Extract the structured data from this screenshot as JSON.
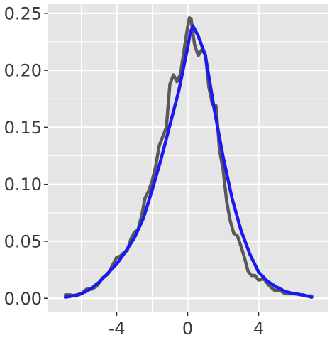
{
  "chart_data": {
    "type": "line",
    "title": "",
    "xlabel": "",
    "ylabel": "",
    "xlim": [
      -7.9,
      7.9
    ],
    "ylim": [
      -0.0123,
      0.258
    ],
    "x_ticks": [
      -4,
      0,
      4
    ],
    "x_tick_labels": [
      "-4",
      "0",
      "4"
    ],
    "y_ticks": [
      0.0,
      0.05,
      0.1,
      0.15,
      0.2,
      0.25
    ],
    "y_tick_labels": [
      "0.00",
      "0.05",
      "0.10",
      "0.15",
      "0.20",
      "0.25"
    ],
    "grid": true,
    "panel_background": "#e5e5e5",
    "grid_color": "#ffffff",
    "series": [
      {
        "color": "#595959",
        "x": [
          -6.9,
          -6.6,
          -6.3,
          -6.0,
          -5.7,
          -5.4,
          -5.1,
          -4.8,
          -4.5,
          -4.2,
          -4.0,
          -3.8,
          -3.6,
          -3.4,
          -3.2,
          -3.0,
          -2.8,
          -2.6,
          -2.4,
          -2.2,
          -2.0,
          -1.8,
          -1.6,
          -1.4,
          -1.2,
          -1.0,
          -0.8,
          -0.6,
          -0.4,
          -0.2,
          0.0,
          0.1,
          0.2,
          0.3,
          0.4,
          0.6,
          0.8,
          1.0,
          1.2,
          1.4,
          1.6,
          1.8,
          2.0,
          2.2,
          2.4,
          2.6,
          2.8,
          3.0,
          3.2,
          3.4,
          3.6,
          3.8,
          4.0,
          4.3,
          4.6,
          4.9,
          5.2,
          5.5,
          5.8,
          6.1,
          6.4,
          6.7,
          7.0
        ],
        "y": [
          0.003,
          0.003,
          0.002,
          0.004,
          0.008,
          0.008,
          0.011,
          0.018,
          0.021,
          0.03,
          0.036,
          0.037,
          0.04,
          0.042,
          0.052,
          0.058,
          0.06,
          0.072,
          0.088,
          0.094,
          0.103,
          0.116,
          0.134,
          0.142,
          0.15,
          0.188,
          0.196,
          0.19,
          0.197,
          0.218,
          0.238,
          0.246,
          0.245,
          0.232,
          0.222,
          0.213,
          0.218,
          0.214,
          0.185,
          0.17,
          0.169,
          0.13,
          0.113,
          0.085,
          0.068,
          0.057,
          0.055,
          0.046,
          0.036,
          0.024,
          0.02,
          0.02,
          0.016,
          0.017,
          0.011,
          0.007,
          0.007,
          0.004,
          0.004,
          0.004,
          0.003,
          0.002,
          0.002
        ]
      },
      {
        "color": "#1a1aee",
        "x": [
          -6.9,
          -6.5,
          -6.0,
          -5.5,
          -5.0,
          -4.5,
          -4.0,
          -3.5,
          -3.0,
          -2.5,
          -2.0,
          -1.5,
          -1.0,
          -0.5,
          0.0,
          0.15,
          0.3,
          0.6,
          1.0,
          1.5,
          2.0,
          2.5,
          3.0,
          3.5,
          4.0,
          4.5,
          5.0,
          5.5,
          6.0,
          6.5,
          7.0
        ],
        "y": [
          0.001,
          0.002,
          0.004,
          0.008,
          0.014,
          0.022,
          0.03,
          0.041,
          0.053,
          0.07,
          0.095,
          0.122,
          0.152,
          0.182,
          0.22,
          0.233,
          0.239,
          0.23,
          0.213,
          0.166,
          0.124,
          0.088,
          0.06,
          0.039,
          0.023,
          0.015,
          0.01,
          0.006,
          0.004,
          0.003,
          0.001
        ]
      }
    ]
  }
}
